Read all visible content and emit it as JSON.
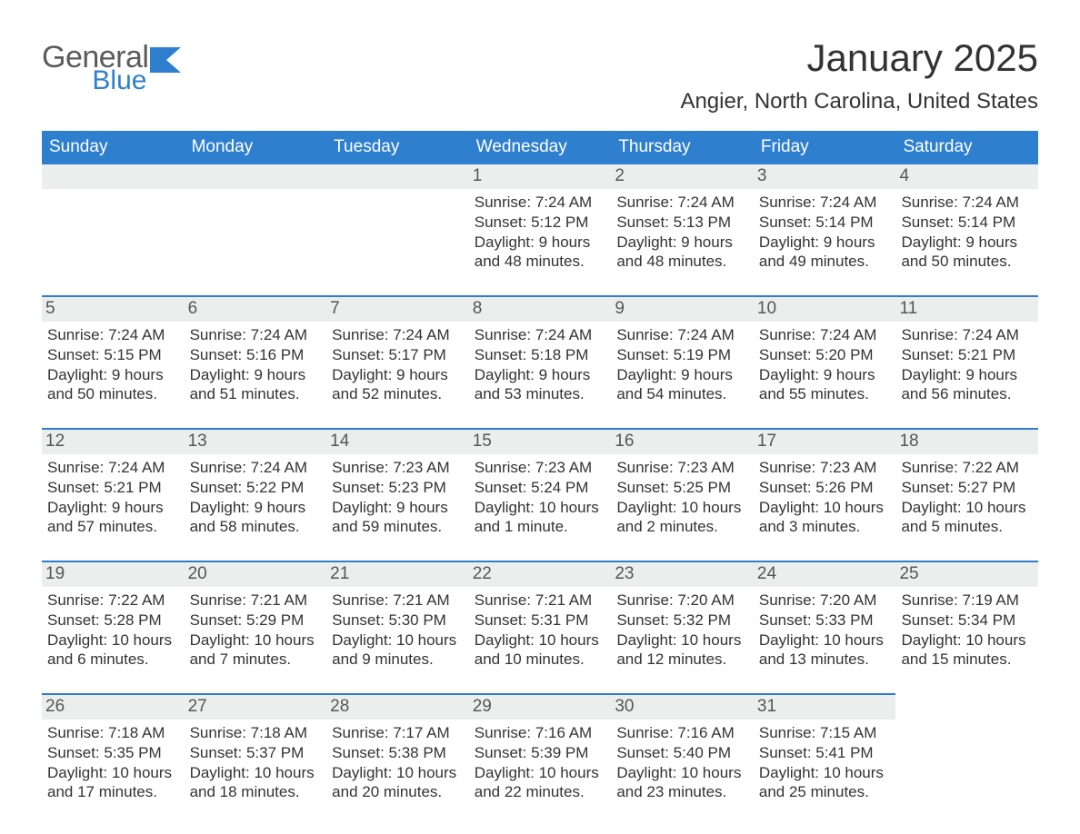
{
  "logo": {
    "general": "General",
    "blue": "Blue",
    "flag_color": "#2f7fcf"
  },
  "header": {
    "month_title": "January 2025",
    "location": "Angier, North Carolina, United States"
  },
  "colors": {
    "header_bg": "#2f7fcf",
    "header_text": "#ffffff",
    "daynum_bg": "#eceded",
    "daynum_border": "#2f7fcf",
    "body_text": "#333333",
    "page_bg": "#ffffff"
  },
  "days_of_week": [
    "Sunday",
    "Monday",
    "Tuesday",
    "Wednesday",
    "Thursday",
    "Friday",
    "Saturday"
  ],
  "weeks": [
    [
      null,
      null,
      null,
      {
        "n": "1",
        "sunrise": "7:24 AM",
        "sunset": "5:12 PM",
        "daylight": "9 hours and 48 minutes."
      },
      {
        "n": "2",
        "sunrise": "7:24 AM",
        "sunset": "5:13 PM",
        "daylight": "9 hours and 48 minutes."
      },
      {
        "n": "3",
        "sunrise": "7:24 AM",
        "sunset": "5:14 PM",
        "daylight": "9 hours and 49 minutes."
      },
      {
        "n": "4",
        "sunrise": "7:24 AM",
        "sunset": "5:14 PM",
        "daylight": "9 hours and 50 minutes."
      }
    ],
    [
      {
        "n": "5",
        "sunrise": "7:24 AM",
        "sunset": "5:15 PM",
        "daylight": "9 hours and 50 minutes."
      },
      {
        "n": "6",
        "sunrise": "7:24 AM",
        "sunset": "5:16 PM",
        "daylight": "9 hours and 51 minutes."
      },
      {
        "n": "7",
        "sunrise": "7:24 AM",
        "sunset": "5:17 PM",
        "daylight": "9 hours and 52 minutes."
      },
      {
        "n": "8",
        "sunrise": "7:24 AM",
        "sunset": "5:18 PM",
        "daylight": "9 hours and 53 minutes."
      },
      {
        "n": "9",
        "sunrise": "7:24 AM",
        "sunset": "5:19 PM",
        "daylight": "9 hours and 54 minutes."
      },
      {
        "n": "10",
        "sunrise": "7:24 AM",
        "sunset": "5:20 PM",
        "daylight": "9 hours and 55 minutes."
      },
      {
        "n": "11",
        "sunrise": "7:24 AM",
        "sunset": "5:21 PM",
        "daylight": "9 hours and 56 minutes."
      }
    ],
    [
      {
        "n": "12",
        "sunrise": "7:24 AM",
        "sunset": "5:21 PM",
        "daylight": "9 hours and 57 minutes."
      },
      {
        "n": "13",
        "sunrise": "7:24 AM",
        "sunset": "5:22 PM",
        "daylight": "9 hours and 58 minutes."
      },
      {
        "n": "14",
        "sunrise": "7:23 AM",
        "sunset": "5:23 PM",
        "daylight": "9 hours and 59 minutes."
      },
      {
        "n": "15",
        "sunrise": "7:23 AM",
        "sunset": "5:24 PM",
        "daylight": "10 hours and 1 minute."
      },
      {
        "n": "16",
        "sunrise": "7:23 AM",
        "sunset": "5:25 PM",
        "daylight": "10 hours and 2 minutes."
      },
      {
        "n": "17",
        "sunrise": "7:23 AM",
        "sunset": "5:26 PM",
        "daylight": "10 hours and 3 minutes."
      },
      {
        "n": "18",
        "sunrise": "7:22 AM",
        "sunset": "5:27 PM",
        "daylight": "10 hours and 5 minutes."
      }
    ],
    [
      {
        "n": "19",
        "sunrise": "7:22 AM",
        "sunset": "5:28 PM",
        "daylight": "10 hours and 6 minutes."
      },
      {
        "n": "20",
        "sunrise": "7:21 AM",
        "sunset": "5:29 PM",
        "daylight": "10 hours and 7 minutes."
      },
      {
        "n": "21",
        "sunrise": "7:21 AM",
        "sunset": "5:30 PM",
        "daylight": "10 hours and 9 minutes."
      },
      {
        "n": "22",
        "sunrise": "7:21 AM",
        "sunset": "5:31 PM",
        "daylight": "10 hours and 10 minutes."
      },
      {
        "n": "23",
        "sunrise": "7:20 AM",
        "sunset": "5:32 PM",
        "daylight": "10 hours and 12 minutes."
      },
      {
        "n": "24",
        "sunrise": "7:20 AM",
        "sunset": "5:33 PM",
        "daylight": "10 hours and 13 minutes."
      },
      {
        "n": "25",
        "sunrise": "7:19 AM",
        "sunset": "5:34 PM",
        "daylight": "10 hours and 15 minutes."
      }
    ],
    [
      {
        "n": "26",
        "sunrise": "7:18 AM",
        "sunset": "5:35 PM",
        "daylight": "10 hours and 17 minutes."
      },
      {
        "n": "27",
        "sunrise": "7:18 AM",
        "sunset": "5:37 PM",
        "daylight": "10 hours and 18 minutes."
      },
      {
        "n": "28",
        "sunrise": "7:17 AM",
        "sunset": "5:38 PM",
        "daylight": "10 hours and 20 minutes."
      },
      {
        "n": "29",
        "sunrise": "7:16 AM",
        "sunset": "5:39 PM",
        "daylight": "10 hours and 22 minutes."
      },
      {
        "n": "30",
        "sunrise": "7:16 AM",
        "sunset": "5:40 PM",
        "daylight": "10 hours and 23 minutes."
      },
      {
        "n": "31",
        "sunrise": "7:15 AM",
        "sunset": "5:41 PM",
        "daylight": "10 hours and 25 minutes."
      },
      null
    ]
  ],
  "labels": {
    "sunrise": "Sunrise: ",
    "sunset": "Sunset: ",
    "daylight": "Daylight: "
  }
}
